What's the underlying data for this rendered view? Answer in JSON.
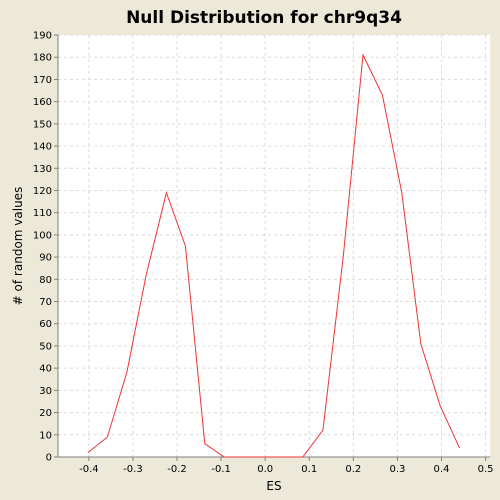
{
  "colors": {
    "background": "#ece9d8",
    "plot_background": "#ffffff",
    "series_line": "#ee3333",
    "grid": "#dcdcdc"
  },
  "chart_data": {
    "type": "line",
    "title": "Null Distribution for chr9q34",
    "xlabel": "ES",
    "ylabel": "# of random values",
    "xlim": [
      -0.47,
      0.51
    ],
    "ylim": [
      0,
      190
    ],
    "xticks": [
      -0.4,
      -0.3,
      -0.2,
      -0.1,
      0.0,
      0.1,
      0.2,
      0.3,
      0.4,
      0.5
    ],
    "xtick_labels": [
      "-0.4",
      "-0.3",
      "-0.2",
      "-0.1",
      "0.0",
      "0.1",
      "0.2",
      "0.3",
      "0.4",
      "0.5"
    ],
    "yticks": [
      0,
      10,
      20,
      30,
      40,
      50,
      60,
      70,
      80,
      90,
      100,
      110,
      120,
      130,
      140,
      150,
      160,
      170,
      180,
      190
    ],
    "grid": true,
    "legend": "none",
    "series": [
      {
        "color": "#ee3333",
        "x": [
          -0.402,
          -0.358,
          -0.314,
          -0.27,
          -0.224,
          -0.181,
          -0.137,
          -0.093,
          0.085,
          0.131,
          0.177,
          0.222,
          0.266,
          0.31,
          0.353,
          0.397,
          0.441
        ],
        "y": [
          2,
          9,
          38,
          82,
          119,
          95,
          6,
          0,
          0,
          12,
          90,
          181,
          163,
          119,
          51,
          23,
          4
        ]
      }
    ]
  }
}
